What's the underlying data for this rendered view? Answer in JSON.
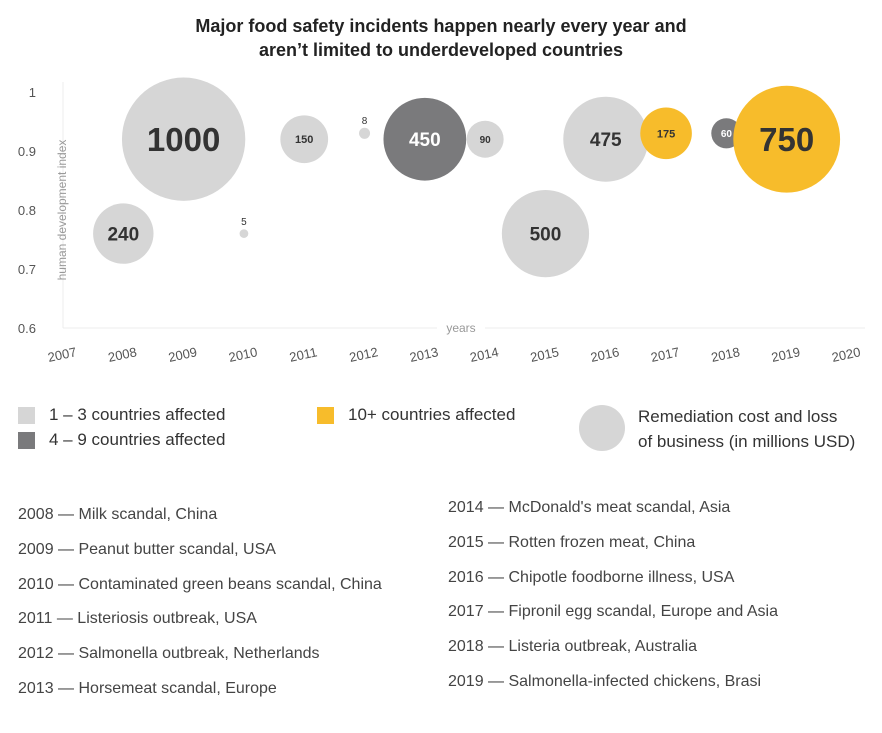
{
  "title_line1": "Major food safety incidents happen nearly every year and",
  "title_line2": "aren’t limited to underdeveloped countries",
  "colors": {
    "cat_1_3": "#d6d6d6",
    "cat_4_9": "#7a7a7c",
    "cat_10_plus": "#f7bc2b",
    "axis_text": "#999999"
  },
  "legend": {
    "cat_1_3": "1 – 3 countries affected",
    "cat_4_9": "4 – 9 countries affected",
    "cat_10_plus": "10+ countries affected",
    "size_line1": "Remediation cost and loss",
    "size_line2": "of business (in millions USD)"
  },
  "chart_data": {
    "type": "scatter",
    "title": "Major food safety incidents happen nearly every year and aren’t limited to underdeveloped countries",
    "xlabel": "years",
    "ylabel": "human development index",
    "xlim": [
      2007,
      2020
    ],
    "ylim": [
      0.6,
      1
    ],
    "x_ticks": [
      "2007",
      "2008",
      "2009",
      "2010",
      "2011",
      "2012",
      "2013",
      "2014",
      "2015",
      "2016",
      "2017",
      "2018",
      "2019",
      "2020"
    ],
    "y_ticks": [
      "0.6",
      "0.7",
      "0.8",
      "0.9",
      "1"
    ],
    "grid": false,
    "size_measure": "Remediation cost and loss of business (in millions USD)",
    "points": [
      {
        "x": 2008,
        "y": 0.76,
        "size": 240,
        "label": "240",
        "category": "1-3"
      },
      {
        "x": 2009,
        "y": 0.92,
        "size": 1000,
        "label": "1000",
        "category": "1-3"
      },
      {
        "x": 2010,
        "y": 0.76,
        "size": 5,
        "label": "5",
        "category": "1-3"
      },
      {
        "x": 2011,
        "y": 0.92,
        "size": 150,
        "label": "150",
        "category": "1-3"
      },
      {
        "x": 2012,
        "y": 0.93,
        "size": 8,
        "label": "8",
        "category": "1-3"
      },
      {
        "x": 2013,
        "y": 0.92,
        "size": 450,
        "label": "450",
        "category": "4-9"
      },
      {
        "x": 2014,
        "y": 0.92,
        "size": 90,
        "label": "90",
        "category": "1-3"
      },
      {
        "x": 2015,
        "y": 0.76,
        "size": 500,
        "label": "500",
        "category": "1-3"
      },
      {
        "x": 2016,
        "y": 0.92,
        "size": 475,
        "label": "475",
        "category": "1-3"
      },
      {
        "x": 2017,
        "y": 0.93,
        "size": 175,
        "label": "175",
        "category": "10+"
      },
      {
        "x": 2018,
        "y": 0.93,
        "size": 60,
        "label": "60",
        "category": "4-9"
      },
      {
        "x": 2019,
        "y": 0.92,
        "size": 750,
        "label": "750",
        "category": "10+"
      }
    ]
  },
  "notes_left": [
    "2008 — Milk scandal, China",
    "2009 — Peanut butter scandal, USA",
    "2010 — Contaminated green beans scandal, China",
    "2011 — Listeriosis outbreak, USA",
    "2012 — Salmonella outbreak, Netherlands",
    "2013 — Horsemeat scandal, Europe"
  ],
  "notes_right": [
    "2014 — McDonald's meat scandal, Asia",
    "2015 — Rotten frozen meat, China",
    "2016 — Chipotle foodborne illness, USA",
    "2017 — Fipronil egg scandal, Europe and Asia",
    "2018 — Listeria outbreak, Australia",
    "2019 — Salmonella-infected chickens, Brasi"
  ]
}
